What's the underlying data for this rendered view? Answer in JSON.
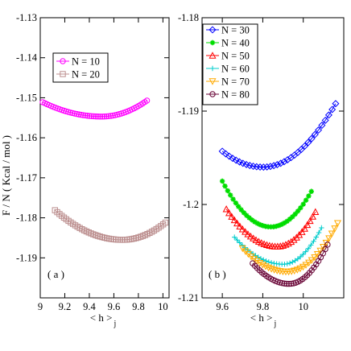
{
  "ylabel": "F / N  ( Kcal / mol )",
  "chart_data": [
    {
      "type": "line",
      "panel_label": "( a )",
      "xlabel_main": "< h >",
      "xlabel_sub": "j",
      "xlim": [
        9.0,
        10.05
      ],
      "ylim": [
        -1.2,
        -1.13
      ],
      "x_ticks": [
        "9",
        "9.2",
        "9.4",
        "9.6",
        "9.8",
        "10"
      ],
      "y_ticks": [
        "-1.13",
        "-1.14",
        "-1.15",
        "-1.16",
        "-1.17",
        "-1.18",
        "-1.19"
      ],
      "legend_position": "top-left",
      "series": [
        {
          "name": "N = 10",
          "color": "#ff00ff",
          "marker": "circle",
          "x_start": 9.02,
          "x_end": 9.87,
          "x_min": 9.5,
          "y_min": -1.1547,
          "y_start": -1.1511,
          "y_end": -1.1507
        },
        {
          "name": "N = 20",
          "color": "#bc8f8f",
          "marker": "square",
          "x_start": 9.12,
          "x_end": 10.02,
          "x_min": 9.67,
          "y_min": -1.1855,
          "y_start": -1.1781,
          "y_end": -1.1812
        }
      ]
    },
    {
      "type": "line",
      "panel_label": "( b )",
      "xlabel_main": "< h >",
      "xlabel_sub": "j",
      "xlim": [
        9.5,
        10.2
      ],
      "ylim": [
        -1.21,
        -1.18
      ],
      "x_ticks": [
        "9.6",
        "9.8",
        "10"
      ],
      "y_ticks": [
        "-1.18",
        "-1.19",
        "-1.2",
        "-1.21"
      ],
      "legend_position": "top-left",
      "series": [
        {
          "name": "N = 30",
          "color": "#0000ff",
          "marker": "diamond",
          "x_start": 9.6,
          "x_end": 10.16,
          "x_min": 9.8,
          "y_min": -1.196,
          "y_start": -1.1943,
          "y_end": -1.1892
        },
        {
          "name": "N = 40",
          "color": "#00dd00",
          "marker": "star",
          "x_start": 9.6,
          "x_end": 10.04,
          "x_min": 9.84,
          "y_min": -1.2024,
          "y_start": -1.1975,
          "y_end": -1.1986
        },
        {
          "name": "N = 50",
          "color": "#ff0000",
          "marker": "triangle-up",
          "x_start": 9.62,
          "x_end": 10.06,
          "x_min": 9.87,
          "y_min": -1.2045,
          "y_start": -1.2005,
          "y_end": -1.2008
        },
        {
          "name": "N = 60",
          "color": "#00cccc",
          "marker": "plus",
          "x_start": 9.66,
          "x_end": 10.09,
          "x_min": 9.9,
          "y_min": -1.2064,
          "y_start": -1.2035,
          "y_end": -1.2025
        },
        {
          "name": "N = 70",
          "color": "#ffaa00",
          "marker": "triangle-down",
          "x_start": 9.7,
          "x_end": 10.17,
          "x_min": 9.92,
          "y_min": -1.2072,
          "y_start": -1.2047,
          "y_end": -1.202
        },
        {
          "name": "N = 80",
          "color": "#660033",
          "marker": "circle",
          "x_start": 9.75,
          "x_end": 10.12,
          "x_min": 9.93,
          "y_min": -1.2085,
          "y_start": -1.2063,
          "y_end": -1.2043
        }
      ]
    }
  ]
}
